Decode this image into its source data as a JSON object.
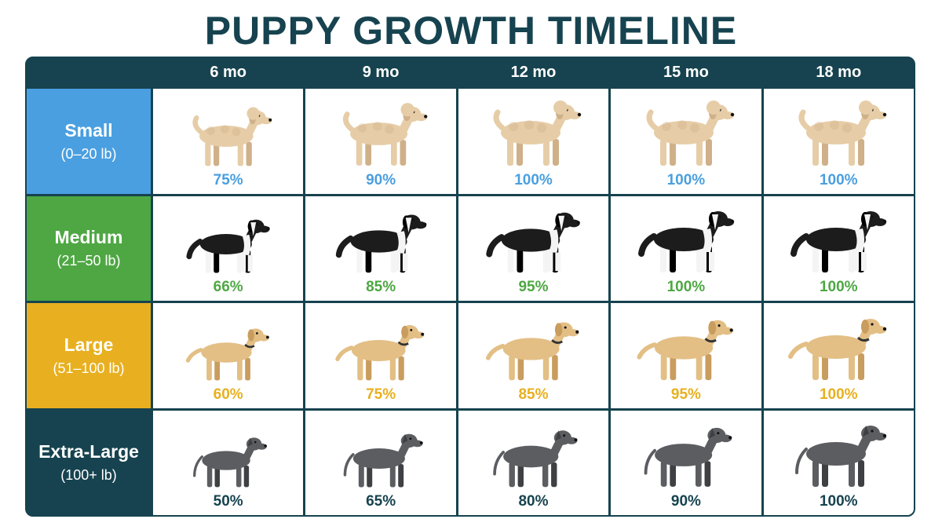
{
  "title": "PUPPY GROWTH TIMELINE",
  "columns": [
    "6 mo",
    "9 mo",
    "12 mo",
    "15 mo",
    "18 mo"
  ],
  "rows": [
    {
      "name": "Small",
      "range": "(0–20 lb)",
      "color": "#4a9fe0",
      "dog": "poodle-mix",
      "coat": "#e6cda7",
      "coat_dark": "#cfb089",
      "percents": [
        "75%",
        "90%",
        "100%",
        "100%",
        "100%"
      ]
    },
    {
      "name": "Medium",
      "range": "(21–50 lb)",
      "color": "#4ea743",
      "dog": "border-collie",
      "coat": "#1c1c1c",
      "coat_dark": "#000000",
      "percents": [
        "66%",
        "85%",
        "95%",
        "100%",
        "100%"
      ]
    },
    {
      "name": "Large",
      "range": "(51–100 lb)",
      "color": "#e8b020",
      "dog": "labrador",
      "coat": "#e3bf85",
      "coat_dark": "#c99d5e",
      "percents": [
        "60%",
        "75%",
        "85%",
        "95%",
        "100%"
      ]
    },
    {
      "name": "Extra-Large",
      "range": "(100+ lb)",
      "color": "#16434f",
      "dog": "great-dane",
      "coat": "#5b5d61",
      "coat_dark": "#3e4044",
      "percents": [
        "50%",
        "65%",
        "80%",
        "90%",
        "100%"
      ]
    }
  ],
  "growth_scale": [
    [
      0.75,
      0.9,
      1.0,
      1.0,
      1.0
    ],
    [
      0.66,
      0.85,
      0.95,
      1.0,
      1.0
    ],
    [
      0.6,
      0.75,
      0.85,
      0.95,
      1.0
    ],
    [
      0.5,
      0.65,
      0.8,
      0.9,
      1.0
    ]
  ]
}
